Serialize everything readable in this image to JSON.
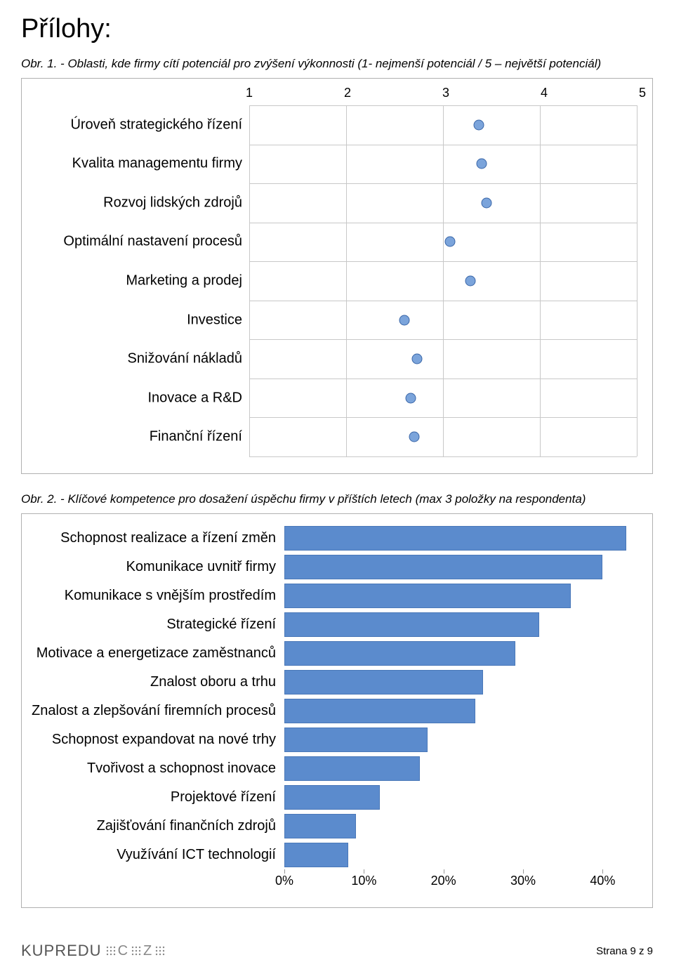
{
  "page_title": "Přílohy:",
  "caption1": "Obr. 1. - Oblasti, kde firmy cítí potenciál pro zvýšení výkonnosti (1- nejmenší potenciál / 5 – největší potenciál)",
  "caption2": "Obr. 2. - Klíčové kompetence pro dosažení úspěchu firmy v příštích letech (max 3 položky na respondenta)",
  "chart1": {
    "type": "dot",
    "xmin": 1,
    "xmax": 5,
    "xticks": [
      1,
      2,
      3,
      4,
      5
    ],
    "xtick_labels": [
      "1",
      "2",
      "3",
      "4",
      "5"
    ],
    "categories": [
      "Úroveň strategického řízení",
      "Kvalita managementu firmy",
      "Rozvoj lidských zdrojů",
      "Optimální nastavení procesů",
      "Marketing a prodej",
      "Investice",
      "Snižování nákladů",
      "Inovace a R&D",
      "Finanční řízení"
    ],
    "values": [
      3.37,
      3.4,
      3.45,
      3.07,
      3.28,
      2.6,
      2.73,
      2.67,
      2.7
    ],
    "marker_fill": "#7ba4db",
    "marker_stroke": "#3a66a8",
    "grid_color": "#c8c8c8",
    "label_fontsize": 20,
    "tick_fontsize": 18
  },
  "chart2": {
    "type": "bar",
    "xmin": 0,
    "xmax": 45,
    "xticks": [
      0,
      10,
      20,
      30,
      40
    ],
    "xtick_labels": [
      "0%",
      "10%",
      "20%",
      "30%",
      "40%"
    ],
    "categories": [
      "Schopnost realizace a řízení změn",
      "Komunikace uvnitř firmy",
      "Komunikace s vnějším prostředím",
      "Strategické řízení",
      "Motivace a energetizace zaměstnanců",
      "Znalost oboru a trhu",
      "Znalost a zlepšování firemních procesů",
      "Schopnost expandovat na nové trhy",
      "Tvořivost a schopnost inovace",
      "Projektové řízení",
      "Zajišťování finančních zdrojů",
      "Využívání ICT technologií"
    ],
    "values": [
      43,
      40,
      36,
      32,
      29,
      25,
      24,
      18,
      17,
      12,
      9,
      8
    ],
    "bar_color": "#5b8bcd",
    "bar_border": "#4a78b8",
    "label_fontsize": 20,
    "tick_fontsize": 18
  },
  "footer": {
    "brand_main": "KUPREDU",
    "brand_c": "C",
    "brand_z": "Z",
    "page_text": "Strana 9 z 9"
  }
}
